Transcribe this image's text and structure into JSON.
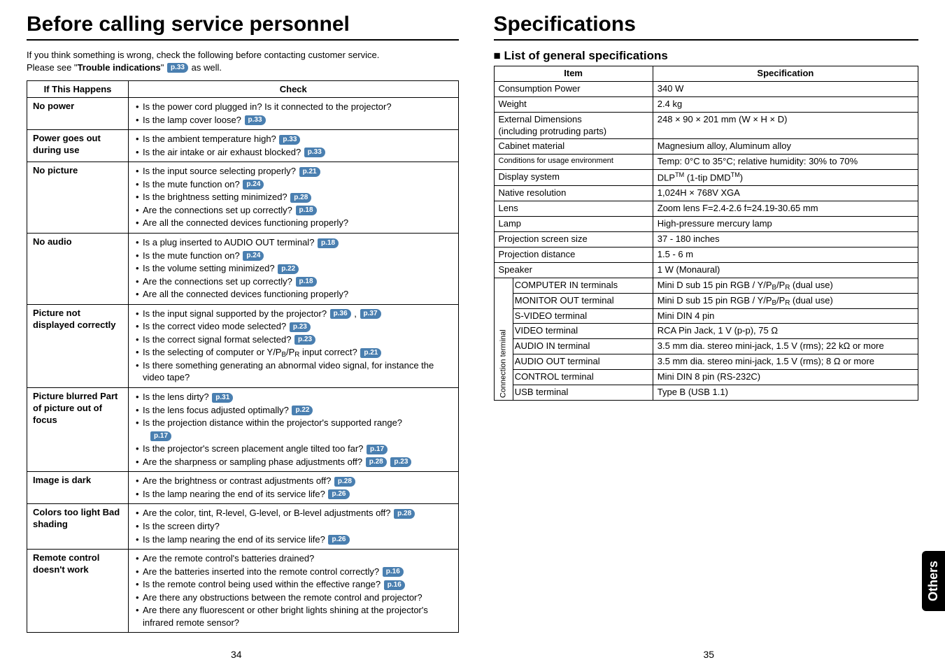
{
  "left": {
    "title": "Before calling service personnel",
    "intro_line1": "If you think something is wrong, check the following before contacting customer service.",
    "intro_prefix": "Please see \"",
    "intro_bold": "Trouble indications",
    "intro_mid": "\" ",
    "intro_pref": "p.33",
    "intro_suffix": "  as well.",
    "head_if": "If  This Happens",
    "head_check": "Check",
    "rows": [
      {
        "label": "No power",
        "items": [
          {
            "t": "Is the power cord plugged in? Is it connected to the projector?"
          },
          {
            "t": "Is the lamp cover loose?",
            "p": [
              "p.33"
            ]
          }
        ]
      },
      {
        "label": "Power goes out during use",
        "items": [
          {
            "t": "Is the ambient temperature high?",
            "p": [
              "p.33"
            ]
          },
          {
            "t": "Is the air intake or air exhaust blocked?",
            "p": [
              "p.33"
            ]
          }
        ]
      },
      {
        "label": "No picture",
        "items": [
          {
            "t": "Is the input source selecting properly?",
            "p": [
              "p.21"
            ]
          },
          {
            "t": "Is the mute function on?",
            "p": [
              "p.24"
            ]
          },
          {
            "t": "Is the brightness setting minimized?",
            "p": [
              "p.28"
            ]
          },
          {
            "t": "Are the connections set up correctly?",
            "p": [
              "p.18"
            ]
          },
          {
            "t": "Are all the connected devices functioning properly?"
          }
        ]
      },
      {
        "label": "No audio",
        "items": [
          {
            "t": "Is a plug inserted to AUDIO OUT terminal?",
            "p": [
              "p.18"
            ]
          },
          {
            "t": "Is the mute function on?",
            "p": [
              "p.24"
            ]
          },
          {
            "t": "Is the volume setting minimized?",
            "p": [
              "p.22"
            ]
          },
          {
            "t": "Are the connections set up correctly?",
            "p": [
              "p.18"
            ]
          },
          {
            "t": "Are all the connected devices functioning properly?"
          }
        ]
      },
      {
        "label": "Picture not displayed correctly",
        "items": [
          {
            "t": "Is the input signal supported by the projector?",
            "p": [
              "p.36",
              "p.37"
            ],
            "sep": " , "
          },
          {
            "t": "Is the correct video mode selected?",
            "p": [
              "p.23"
            ]
          },
          {
            "t": "Is the correct signal format selected? ",
            "p": [
              "p.23"
            ]
          },
          {
            "t_html": "Is the selecting of computer or Y/P<sub>B</sub>/P<sub>R</sub> input correct?",
            "p": [
              "p.21"
            ]
          },
          {
            "t": "Is there something generating an abnormal video signal, for instance the video tape?"
          }
        ]
      },
      {
        "label": "Picture blurred Part of picture out of focus",
        "items": [
          {
            "t": "Is the lens dirty?",
            "p": [
              "p.31"
            ]
          },
          {
            "t": "Is the lens focus adjusted optimally?",
            "p": [
              "p.22"
            ]
          },
          {
            "t": "Is the projection distance within the projector's supported range?",
            "p_below": "p.17"
          },
          {
            "t": "Is the projector's screen placement angle tilted too far?  ",
            "p": [
              "p.17"
            ]
          },
          {
            "t": "Are the sharpness or sampling phase adjustments off?",
            "p": [
              "p.28",
              "p.23"
            ]
          }
        ]
      },
      {
        "label": "Image is dark",
        "items": [
          {
            "t": "Are the brightness or contrast adjustments off?",
            "p": [
              "p.28"
            ]
          },
          {
            "t": "Is the lamp nearing the end of its service life?",
            "p": [
              "p.26"
            ]
          }
        ]
      },
      {
        "label": "Colors too light Bad shading",
        "items": [
          {
            "t": "Are the color, tint, R-level, G-level, or B-level adjustments off?",
            "p": [
              "p.28"
            ]
          },
          {
            "t": "Is the screen dirty?"
          },
          {
            "t": "Is the lamp nearing the end of its service life?",
            "p": [
              "p.26"
            ]
          }
        ]
      },
      {
        "label": "Remote control doesn't work",
        "items": [
          {
            "t": "Are the remote control's batteries drained?"
          },
          {
            "t": "Are the batteries inserted into the remote control correctly?",
            "p": [
              "p.16"
            ]
          },
          {
            "t": "Is the remote control being used within the effective range?",
            "p": [
              "p.16"
            ]
          },
          {
            "t": "Are there any obstructions between the remote control and projector?"
          },
          {
            "t": "Are there any fluorescent or other bright lights shining at the projector's infrared remote sensor?"
          }
        ]
      }
    ],
    "pagenum": "34"
  },
  "right": {
    "title": "Specifications",
    "subtitle": "List of general specifications",
    "head_item": "Item",
    "head_spec": "Specification",
    "main_rows": [
      {
        "item": "Consumption Power",
        "spec": "340 W"
      },
      {
        "item": "Weight",
        "spec": "2.4 kg"
      },
      {
        "item_html": "External Dimensions<br>(including protruding parts)",
        "spec": "248 × 90 × 201 mm (W × H × D)"
      },
      {
        "item": "Cabinet material",
        "spec": "Magnesium alloy, Aluminum alloy"
      },
      {
        "item": "Conditions for usage environment",
        "item_class": "small",
        "spec": "Temp: 0°C to 35°C; relative humidity: 30% to 70%"
      },
      {
        "item": "Display system",
        "spec_html": "DLP<sup>TM</sup> (1-tip DMD<sup>TM</sup>)"
      },
      {
        "item": "Native resolution",
        "spec": "1,024H × 768V  XGA"
      },
      {
        "item": "Lens",
        "spec": "Zoom lens F=2.4-2.6   f=24.19-30.65 mm"
      },
      {
        "item": "Lamp",
        "spec": "High-pressure mercury lamp"
      },
      {
        "item": "Projection screen size",
        "spec": "37 - 180 inches"
      },
      {
        "item": "Projection distance",
        "spec": "1.5 - 6 m"
      },
      {
        "item": "Speaker",
        "spec": "1 W (Monaural)"
      }
    ],
    "conn_label": "Connection terminal",
    "conn_rows": [
      {
        "item": "COMPUTER IN terminals",
        "spec_html": "Mini D sub 15 pin   RGB / Y/P<sub>B</sub>/P<sub>R</sub> (dual use)"
      },
      {
        "item": "MONITOR OUT terminal",
        "spec_html": "Mini D sub 15 pin   RGB / Y/P<sub>B</sub>/P<sub>R</sub> (dual use)"
      },
      {
        "item": "S-VIDEO terminal",
        "spec": "Mini DIN 4 pin"
      },
      {
        "item": "VIDEO terminal",
        "spec": "RCA Pin Jack, 1 V (p-p), 75 Ω"
      },
      {
        "item": "AUDIO IN terminal",
        "spec": "3.5 mm dia. stereo mini-jack, 1.5 V (rms); 22 kΩ or more"
      },
      {
        "item": "AUDIO OUT terminal",
        "spec": "3.5 mm dia. stereo mini-jack, 1.5 V (rms); 8 Ω or more"
      },
      {
        "item": "CONTROL terminal",
        "spec": "Mini DIN 8 pin (RS-232C)"
      },
      {
        "item": "USB terminal",
        "spec": "Type B (USB 1.1)"
      }
    ],
    "side_tab": "Others",
    "pagenum": "35"
  }
}
